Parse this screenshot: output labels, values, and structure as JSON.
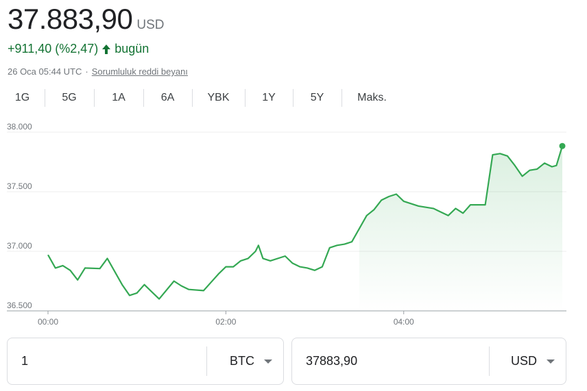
{
  "quote": {
    "price": "37.883,90",
    "currency": "USD",
    "change": "+911,40 (%2,47)",
    "change_period": "bugün",
    "timestamp": "26 Oca 05:44 UTC",
    "separator": "·",
    "disclaimer": "Sorumluluk reddi beyanı",
    "up_color": "#137333"
  },
  "tabs": [
    {
      "label": "1G",
      "active": true
    },
    {
      "label": "5G",
      "active": false
    },
    {
      "label": "1A",
      "active": false
    },
    {
      "label": "6A",
      "active": false
    },
    {
      "label": "YBK",
      "active": false
    },
    {
      "label": "1Y",
      "active": false
    },
    {
      "label": "5Y",
      "active": false
    },
    {
      "label": "Maks.",
      "active": false
    }
  ],
  "chart_data": {
    "type": "area",
    "title": "",
    "xlabel": "",
    "ylabel": "",
    "x_unit": "minutes since 00:00 UTC",
    "xlim": [
      0,
      347
    ],
    "ylim": [
      36500,
      38000
    ],
    "y_ticks": [
      38000,
      37500,
      37000,
      36500
    ],
    "y_tick_labels": [
      "38.000",
      "37.500",
      "37.000",
      "36.500"
    ],
    "x_ticks": [
      0,
      120,
      240
    ],
    "x_tick_labels": [
      "00:00",
      "02:00",
      "04:00"
    ],
    "grid": "horizontal",
    "line_color": "#34a853",
    "series": [
      {
        "x": [
          0,
          5,
          10,
          15,
          20,
          25,
          35,
          40,
          50,
          55,
          60,
          65,
          70,
          75,
          85,
          90,
          95,
          105,
          110,
          115,
          120,
          125,
          130,
          135,
          140,
          142,
          145,
          150,
          160,
          165,
          170,
          175,
          180,
          185,
          190,
          195,
          200,
          205,
          210,
          215,
          220,
          225,
          230,
          235,
          240,
          245,
          250,
          260,
          265,
          270,
          275,
          280,
          285,
          290,
          295,
          300,
          305,
          310,
          315,
          320,
          325,
          330,
          335,
          340,
          343,
          347
        ],
        "y": [
          36970,
          36860,
          36880,
          36840,
          36760,
          36860,
          36855,
          36940,
          36720,
          36630,
          36650,
          36720,
          36660,
          36600,
          36750,
          36710,
          36680,
          36670,
          36740,
          36810,
          36870,
          36870,
          36920,
          36940,
          37000,
          37050,
          36940,
          36920,
          36960,
          36900,
          36870,
          36860,
          36840,
          36870,
          37030,
          37050,
          37060,
          37080,
          37190,
          37300,
          37350,
          37430,
          37460,
          37480,
          37420,
          37400,
          37380,
          37360,
          37330,
          37300,
          37360,
          37320,
          37390,
          37390,
          37390,
          37810,
          37820,
          37800,
          37720,
          37630,
          37680,
          37690,
          37740,
          37710,
          37720,
          37883.9
        ]
      }
    ]
  },
  "converter": {
    "from_amount": "1",
    "from_unit": "BTC",
    "to_amount": "37883,90",
    "to_unit": "USD"
  }
}
